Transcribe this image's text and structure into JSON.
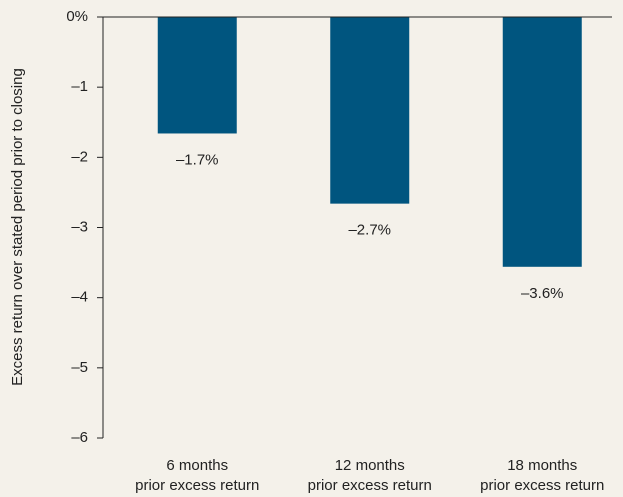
{
  "chart_data": {
    "type": "bar",
    "y_label": "Excess return over stated period prior to closing",
    "categories": [
      [
        "6 months",
        "prior excess return"
      ],
      [
        "12 months",
        "prior excess return"
      ],
      [
        "18 months",
        "prior excess return"
      ]
    ],
    "values": [
      -1.66,
      -2.66,
      -3.56
    ],
    "value_labels": [
      "–1.7%",
      "–2.7%",
      "–3.6%"
    ],
    "color": "#00557f",
    "ylim": [
      -6,
      0
    ],
    "yticks": [
      {
        "value": 0,
        "label": "0%"
      },
      {
        "value": -1,
        "label": "–1"
      },
      {
        "value": -2,
        "label": "–2"
      },
      {
        "value": -3,
        "label": "–3"
      },
      {
        "value": -4,
        "label": "–4"
      },
      {
        "value": -5,
        "label": "–5"
      },
      {
        "value": -6,
        "label": "–6"
      }
    ],
    "grid": false
  }
}
